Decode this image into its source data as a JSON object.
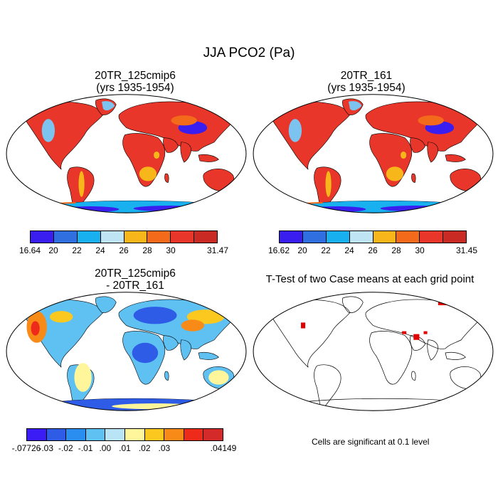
{
  "title": "JJA PCO2 (Pa)",
  "panels": {
    "top_left": {
      "title": "20TR_125cmip6",
      "subtitle": "(yrs 1935-1954)"
    },
    "top_right": {
      "title": "20TR_161",
      "subtitle": "(yrs 1935-1954)"
    },
    "bottom_left": {
      "title": "20TR_125cmip6",
      "subtitle": "- 20TR_161"
    },
    "bottom_right": {
      "title": "T-Test of two Case means at each grid point"
    }
  },
  "colorbars": {
    "top_left": {
      "colors": [
        "#3a1ef0",
        "#2f6fe0",
        "#18b0ee",
        "#bfe4f4",
        "#f7b71a",
        "#f26a1a",
        "#e8372a",
        "#c92a24"
      ],
      "labels": [
        "16.64",
        "20",
        "22",
        "24",
        "26",
        "28",
        "30",
        "31.47"
      ]
    },
    "top_right": {
      "colors": [
        "#3a1ef0",
        "#2f6fe0",
        "#18b0ee",
        "#bfe4f4",
        "#f7b71a",
        "#f26a1a",
        "#e8372a",
        "#c92a24"
      ],
      "labels": [
        "16.62",
        "20",
        "22",
        "24",
        "26",
        "28",
        "30",
        "31.45"
      ]
    },
    "bottom_left": {
      "colors": [
        "#3b1cf5",
        "#2e5ce6",
        "#2a8ef0",
        "#5fc0f2",
        "#b9e4f5",
        "#fff59a",
        "#fbc820",
        "#f88a18",
        "#ee2a1a",
        "#d42a2a"
      ],
      "labels": [
        "-.07726",
        "-.03",
        "-.02",
        "-.01",
        ".00",
        ".01",
        ".02",
        ".03",
        ".04149"
      ]
    }
  },
  "significance_note": "Cells are significant at 0.1 level",
  "colors": {
    "land_warm": "#e8372a",
    "land_orange": "#f26a1a",
    "land_yellow": "#f7b71a",
    "land_cold": "#3a1ef0",
    "sig_red": "#e00000"
  }
}
